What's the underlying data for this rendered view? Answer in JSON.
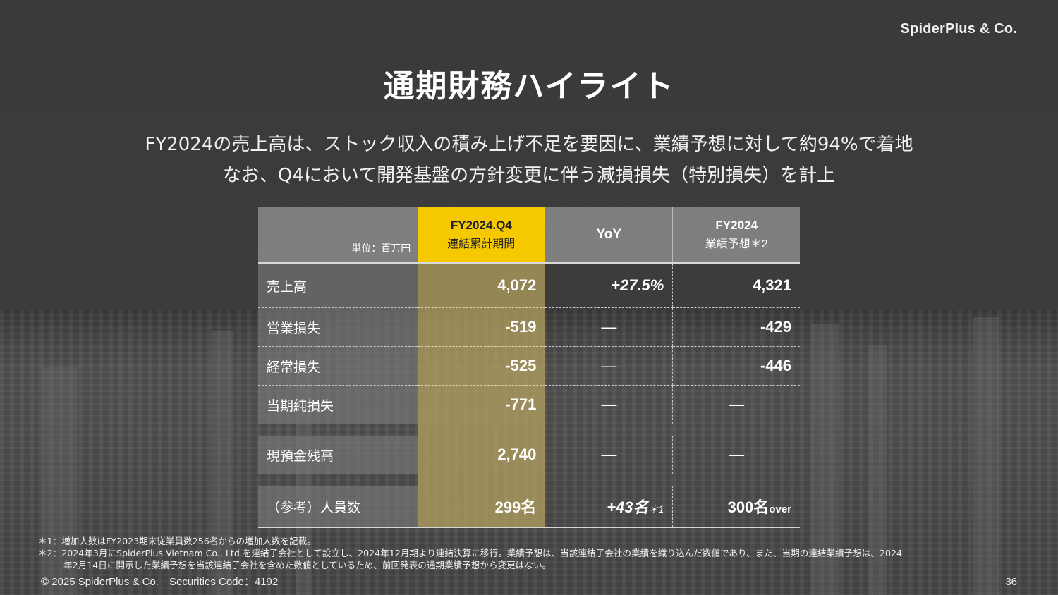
{
  "brand": {
    "logo": "SpiderPlus & Co."
  },
  "slide": {
    "title": "通期財務ハイライト",
    "subtitle_line1": "FY2024の売上高は、ストック収入の積み上げ不足を要因に、業績予想に対して約94%で着地",
    "subtitle_line2": "なお、Q4において開発基盤の方針変更に伴う減損損失（特別損失）を計上"
  },
  "table": {
    "unit": "単位：百万円",
    "headers": {
      "q4_line1": "FY2024.Q4",
      "q4_line2": "連結累計期間",
      "yoy": "YoY",
      "forecast_line1": "FY2024",
      "forecast_line2": "業績予想＊2"
    },
    "rows": [
      {
        "label": "売上高",
        "q4": "4,072",
        "yoy": "+27.5%",
        "forecast": "4,321"
      },
      {
        "label": "営業損失",
        "q4": "-519",
        "yoy": "—",
        "forecast": "-429"
      },
      {
        "label": "経常損失",
        "q4": "-525",
        "yoy": "—",
        "forecast": "-446"
      },
      {
        "label": "当期純損失",
        "q4": "-771",
        "yoy": "—",
        "forecast": "—"
      },
      {
        "label": "現預金残高",
        "q4": "2,740",
        "yoy": "—",
        "forecast": "—"
      },
      {
        "label": "（参考）人員数",
        "q4_num": "299",
        "q4_unit": "名",
        "yoy_num": "+43",
        "yoy_unit": "名",
        "yoy_note": "＊1",
        "forecast_num": "300",
        "forecast_unit": "名",
        "forecast_suffix": "over"
      }
    ]
  },
  "notes": {
    "n1": "＊1：増加人数はFY2023期末従業員数256名からの増加人数を記載。",
    "n2a": "＊2：2024年3月にSpiderPlus Vietnam Co., Ltd.を連結子会社として設立し、2024年12月期より連結決算に移行。業績予想は、当該連結子会社の業績を織り込んだ数値であり、また、当期の連結業績予想は、2024",
    "n2b": "年2月14日に開示した業績予想を当該連結子会社を含めた数値としているため、前回発表の通期業績予想から変更はない。"
  },
  "footer": {
    "copyright": "© 2025 SpiderPlus & Co.　Securities Code：4192",
    "page": "36"
  }
}
